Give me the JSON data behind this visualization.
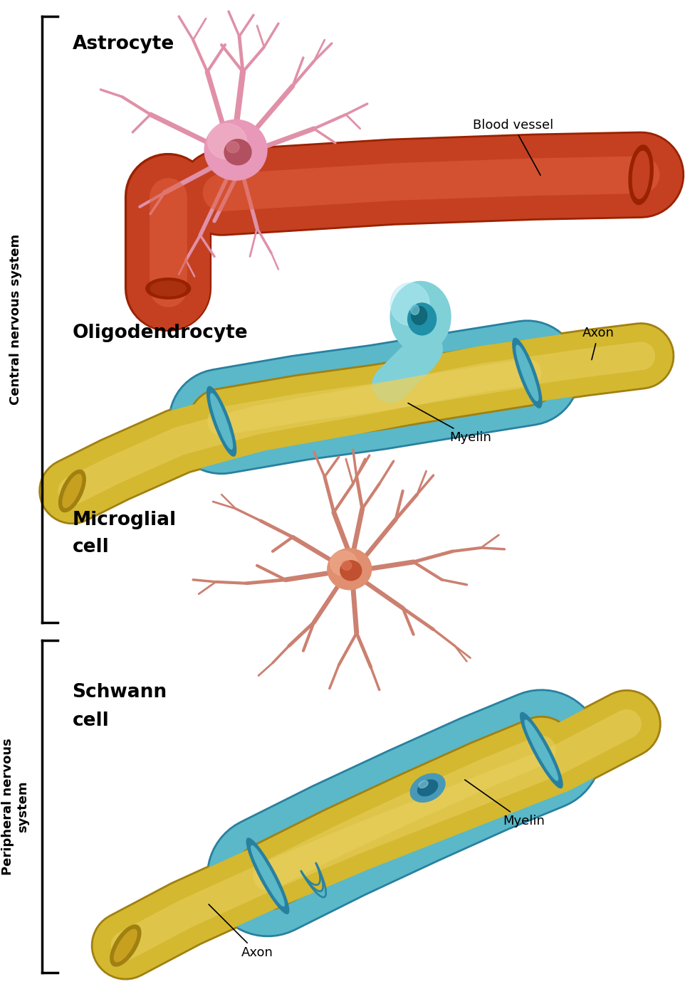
{
  "bg_color": "#ffffff",
  "title_astrocyte": "Astrocyte",
  "title_oligodendrocyte": "Oligodendrocyte",
  "title_microglial_line1": "Microglial",
  "title_microglial_line2": "cell",
  "title_schwann_line1": "Schwann",
  "title_schwann_line2": "cell",
  "label_blood_vessel": "Blood vessel",
  "label_axon_oligo": "Axon",
  "label_myelin_oligo": "Myelin",
  "label_axon_schwann": "Axon",
  "label_myelin_schwann": "Myelin",
  "cns_label": "Central nervous system",
  "pns_label": "Peripheral nervous\nsystem",
  "bv_color": "#c44020",
  "bv_highlight": "#e06040",
  "bv_shadow": "#992200",
  "astrocyte_branch_color": "#e090a8",
  "astrocyte_cell_color": "#e898b8",
  "astrocyte_cell_highlight": "#f4b8cc",
  "astrocyte_nucleus_color": "#b05060",
  "axon_color": "#d4b830",
  "axon_highlight": "#e8d060",
  "axon_shadow": "#a08010",
  "myelin_color": "#5ab8c8",
  "myelin_highlight": "#88d4e0",
  "myelin_shadow": "#2880a0",
  "oligo_cell_color": "#80d0d8",
  "oligo_nucleus_outer": "#2090a8",
  "oligo_nucleus_inner": "#106878",
  "mg_branch_color": "#cc8070",
  "mg_cell_color": "#e09070",
  "mg_nucleus_color": "#c05030",
  "text_color": "#000000",
  "bracket_color": "#000000",
  "label_arrow_color": "#000000"
}
